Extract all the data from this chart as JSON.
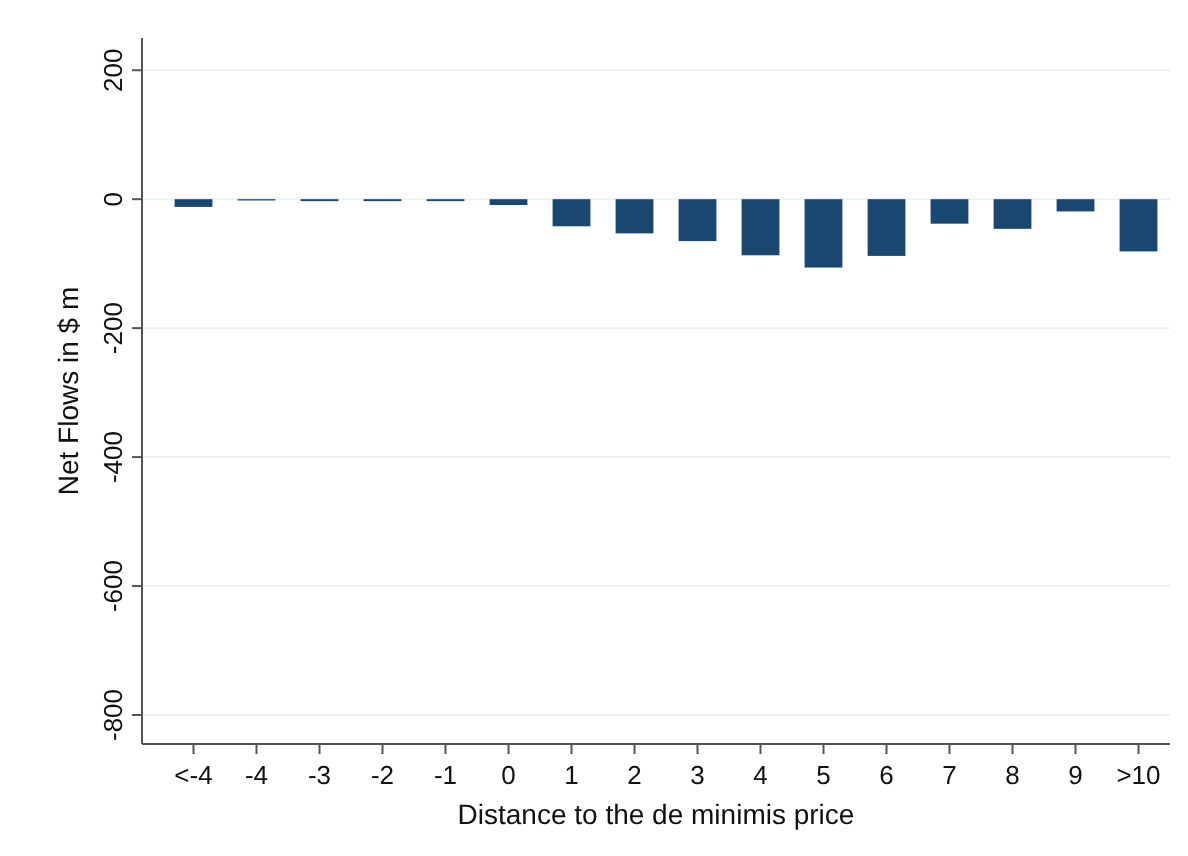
{
  "chart_data": {
    "type": "bar",
    "xlabel": "Distance to the de minimis price",
    "ylabel": "Net Flows in $ m",
    "categories": [
      "<-4",
      "-4",
      "-3",
      "-2",
      "-1",
      "0",
      "1",
      "2",
      "3",
      "4",
      "5",
      "6",
      "7",
      "8",
      "9",
      ">10"
    ],
    "values": [
      -12,
      -2,
      -3,
      -3,
      -3,
      -9,
      -42,
      -53,
      -65,
      -87,
      -106,
      -88,
      -38,
      -46,
      -19,
      -81
    ],
    "color": "#1a476f",
    "ylim": [
      -845,
      250
    ],
    "yticks": [
      -800,
      -600,
      -400,
      -200,
      0,
      200
    ],
    "grid": "y"
  }
}
